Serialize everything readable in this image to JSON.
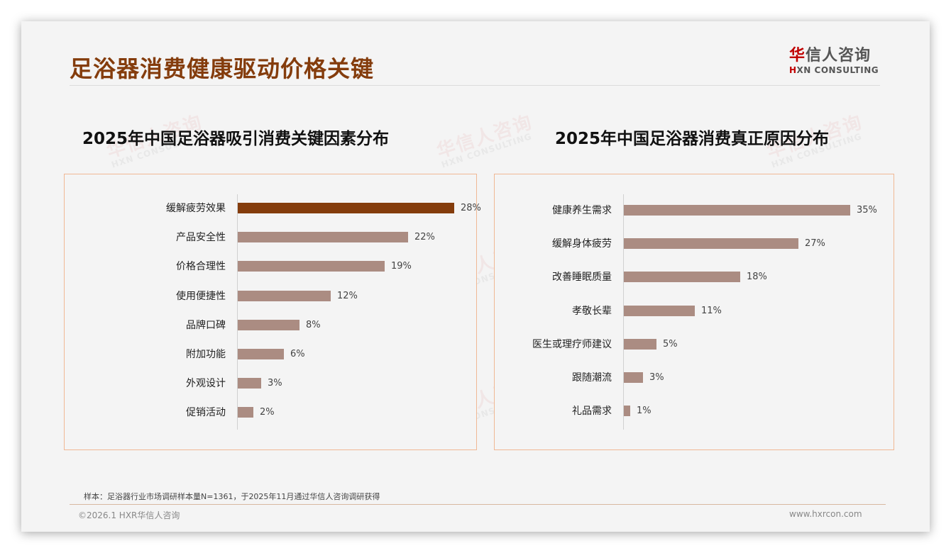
{
  "header": {
    "title": "足浴器消费健康驱动价格关键",
    "logo": {
      "cn_first": "华",
      "cn_rest": "信人咨询",
      "en_mark": "H",
      "en_rest": "XN CONSULTING"
    }
  },
  "watermark": {
    "cn": "华信人咨询",
    "en": "HXN CONSULTING"
  },
  "colors": {
    "highlight_bar": "#843c0c",
    "bar": "#ab8c82",
    "title": "#843c0c",
    "box_border": "#f0b894"
  },
  "charts": [
    {
      "title": "2025年中国足浴器吸引消费关键因素分布",
      "items": [
        {
          "label": "缓解疲劳效果",
          "value": 28,
          "value_label": "28%",
          "highlight": true
        },
        {
          "label": "产品安全性",
          "value": 22,
          "value_label": "22%"
        },
        {
          "label": "价格合理性",
          "value": 19,
          "value_label": "19%"
        },
        {
          "label": "使用便捷性",
          "value": 12,
          "value_label": "12%"
        },
        {
          "label": "品牌口碑",
          "value": 8,
          "value_label": "8%"
        },
        {
          "label": "附加功能",
          "value": 6,
          "value_label": "6%"
        },
        {
          "label": "外观设计",
          "value": 3,
          "value_label": "3%"
        },
        {
          "label": "促销活动",
          "value": 2,
          "value_label": "2%"
        }
      ]
    },
    {
      "title": "2025年中国足浴器消费真正原因分布",
      "items": [
        {
          "label": "健康养生需求",
          "value": 35,
          "value_label": "35%"
        },
        {
          "label": "缓解身体疲劳",
          "value": 27,
          "value_label": "27%"
        },
        {
          "label": "改善睡眠质量",
          "value": 18,
          "value_label": "18%"
        },
        {
          "label": "孝敬长辈",
          "value": 11,
          "value_label": "11%"
        },
        {
          "label": "医生或理疗师建议",
          "value": 5,
          "value_label": "5%"
        },
        {
          "label": "跟随潮流",
          "value": 3,
          "value_label": "3%"
        },
        {
          "label": "礼品需求",
          "value": 1,
          "value_label": "1%"
        }
      ]
    }
  ],
  "chart_data": [
    {
      "type": "bar",
      "orientation": "horizontal",
      "title": "2025年中国足浴器吸引消费关键因素分布",
      "categories": [
        "缓解疲劳效果",
        "产品安全性",
        "价格合理性",
        "使用便捷性",
        "品牌口碑",
        "附加功能",
        "外观设计",
        "促销活动"
      ],
      "values": [
        28,
        22,
        19,
        12,
        8,
        6,
        3,
        2
      ],
      "unit": "%",
      "xlabel": "",
      "ylabel": "",
      "grid": false,
      "highlight": "缓解疲劳效果"
    },
    {
      "type": "bar",
      "orientation": "horizontal",
      "title": "2025年中国足浴器消费真正原因分布",
      "categories": [
        "健康养生需求",
        "缓解身体疲劳",
        "改善睡眠质量",
        "孝敬长辈",
        "医生或理疗师建议",
        "跟随潮流",
        "礼品需求"
      ],
      "values": [
        35,
        27,
        18,
        11,
        5,
        3,
        1
      ],
      "unit": "%",
      "xlabel": "",
      "ylabel": "",
      "grid": false
    }
  ],
  "footer": {
    "note": "样本：足浴器行业市场调研样本量N=1361，于2025年11月通过华信人咨询调研获得",
    "copyright": "©2026.1 HXR华信人咨询",
    "site": "www.hxrcon.com"
  }
}
